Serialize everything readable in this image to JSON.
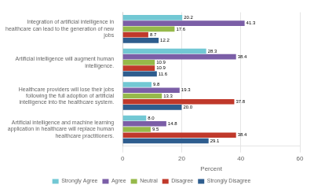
{
  "chart_data": {
    "type": "bar",
    "orientation": "horizontal",
    "categories": [
      "Integration of artificial intelligence in\nhealthcare can lead to the generation of new\njobs",
      "Artificial intelligence will augment human\nintelligence.",
      "Healthcare providers will lose their jobs\nfollowing the full adoption of artificial\nintelligence into the healthcare system.",
      "Artificial intelligence and machine learning\napplication in healthcare will replace human\nhealthcare practitioners."
    ],
    "series": [
      {
        "name": "Strongly Agree",
        "color": "#72c8d4",
        "values": [
          20.2,
          28.3,
          9.8,
          8.0
        ],
        "value_labels": [
          "20.2",
          "28.3",
          "9.8",
          "8.0"
        ]
      },
      {
        "name": "Agree",
        "color": "#7b5ea7",
        "values": [
          41.3,
          38.4,
          19.3,
          14.8
        ],
        "value_labels": [
          "41.3",
          "38.4",
          "19.3",
          "14.8"
        ]
      },
      {
        "name": "Neutral",
        "color": "#96b94a",
        "values": [
          17.6,
          10.9,
          13.3,
          9.5
        ],
        "value_labels": [
          "17.6",
          "10.9",
          "13.3",
          "9.5"
        ]
      },
      {
        "name": "Disagree",
        "color": "#c0392b",
        "values": [
          8.7,
          10.9,
          37.8,
          38.4
        ],
        "value_labels": [
          "8.7",
          "10.9",
          "37.8",
          "38.4"
        ]
      },
      {
        "name": "Strongly Disagree",
        "color": "#2e5d8e",
        "values": [
          12.2,
          11.6,
          20.0,
          29.1
        ],
        "value_labels": [
          "12.2",
          "11.6",
          "20.0",
          "29.1"
        ]
      }
    ],
    "xlabel": "Percent",
    "xlim": [
      0,
      60
    ],
    "xticks": [
      0,
      20,
      40,
      60
    ],
    "grid": true,
    "legend": "bottom",
    "data_labels": true
  }
}
